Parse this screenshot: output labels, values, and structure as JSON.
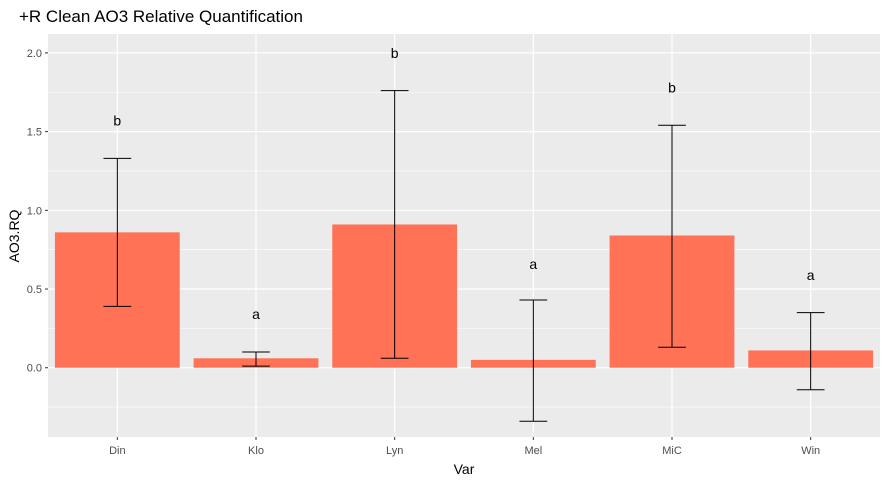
{
  "chart_data": {
    "type": "bar",
    "title": "+R Clean AO3 Relative Quantification",
    "xlabel": "Var",
    "ylabel": "AO3.RQ",
    "categories": [
      "Din",
      "Klo",
      "Lyn",
      "Mel",
      "MiC",
      "Win"
    ],
    "values": [
      0.86,
      0.06,
      0.91,
      0.05,
      0.84,
      0.11
    ],
    "error_low": [
      0.39,
      0.01,
      0.06,
      -0.34,
      0.13,
      -0.14
    ],
    "error_high": [
      1.33,
      0.1,
      1.76,
      0.43,
      1.54,
      0.35
    ],
    "annotations": [
      {
        "label": "b",
        "y": 1.57
      },
      {
        "label": "a",
        "y": 0.34
      },
      {
        "label": "b",
        "y": 2.0
      },
      {
        "label": "a",
        "y": 0.66
      },
      {
        "label": "b",
        "y": 1.78
      },
      {
        "label": "a",
        "y": 0.59
      }
    ],
    "yticks": [
      "0.0",
      "0.5",
      "1.0",
      "1.5",
      "2.0"
    ],
    "ylim": [
      -0.44,
      2.12
    ],
    "grid": true,
    "colors": {
      "bar": "#FF7256",
      "panel": "#EBEBEB",
      "grid": "#FFFFFF",
      "errorbar": "#000000",
      "tick_text": "#4D4D4D"
    }
  }
}
